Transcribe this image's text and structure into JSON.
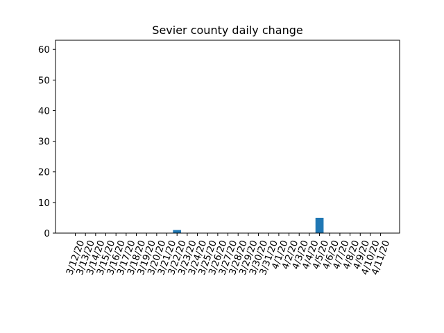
{
  "chart_data": {
    "type": "bar",
    "title": "Sevier county daily change",
    "xlabel": "",
    "ylabel": "",
    "ylim": [
      0,
      63
    ],
    "yticks": [
      0,
      10,
      20,
      30,
      40,
      50,
      60
    ],
    "grid": false,
    "legend": "none",
    "bar_color": "#1f77b4",
    "categories": [
      "3/12/20",
      "3/13/20",
      "3/14/20",
      "3/15/20",
      "3/16/20",
      "3/17/20",
      "3/18/20",
      "3/19/20",
      "3/20/20",
      "3/21/20",
      "3/22/20",
      "3/23/20",
      "3/24/20",
      "3/25/20",
      "3/26/20",
      "3/27/20",
      "3/28/20",
      "3/29/20",
      "3/30/20",
      "3/31/20",
      "4/1/20",
      "4/2/20",
      "4/3/20",
      "4/4/20",
      "4/5/20",
      "4/6/20",
      "4/7/20",
      "4/8/20",
      "4/9/20",
      "4/10/20",
      "4/11/20"
    ],
    "values": [
      0,
      0,
      0,
      0,
      0,
      0,
      0,
      0,
      0,
      0,
      1,
      0,
      0,
      0,
      0,
      0,
      0,
      0,
      0,
      0,
      0,
      0,
      0,
      0,
      5,
      0,
      0,
      0,
      0,
      0,
      0
    ]
  }
}
